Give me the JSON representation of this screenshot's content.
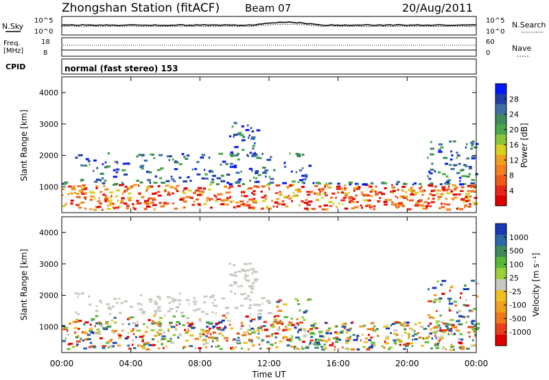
{
  "header": {
    "title": "Zhongshan Station (fitACF)",
    "beam": "Beam 07",
    "date": "20/Aug/2011"
  },
  "top_panels": {
    "nsky_label": "N.Sky",
    "nsky_tick_hi": "10^5",
    "nsky_tick_lo": "10^0",
    "nsearch_label": "N.Search",
    "nsearch_tick_hi": "10^5",
    "nsearch_tick_lo": "10^0",
    "freq_label_1": "Freq.",
    "freq_label_2": "[MHz]",
    "freq_tick_hi": "18",
    "freq_tick_lo": "8",
    "nave_label": "Nave",
    "nave_tick_hi": "60",
    "nave_tick_lo": "0",
    "cpid_label": "CPID",
    "cpid_text": "normal (fast stereo) 153"
  },
  "chart_data": [
    {
      "type": "heatmap",
      "name": "power",
      "ylabel": "Slant Range [km]",
      "yticks": [
        "1000",
        "2000",
        "3000",
        "4000"
      ],
      "ylim": [
        180,
        4500
      ],
      "colorbar_label": "Power [dB]",
      "colorbar_ticks": [
        "4",
        "8",
        "12",
        "16",
        "20",
        "24",
        "28"
      ],
      "colorbar_colors": [
        "#0018ff",
        "#1f3fa8",
        "#3d6ea8",
        "#3e8a5a",
        "#4aa84a",
        "#8ac63a",
        "#d8d020",
        "#f0a020",
        "#f08020",
        "#f05a18",
        "#e82818",
        "#e00000"
      ]
    },
    {
      "type": "heatmap",
      "name": "velocity",
      "ylabel": "Slant Range [km]",
      "yticks": [
        "1000",
        "2000",
        "3000",
        "4000"
      ],
      "ylim": [
        180,
        4500
      ],
      "colorbar_label": "Velocity [m s⁻¹]",
      "colorbar_ticks": [
        "1000",
        "500",
        "100",
        "25",
        "-25",
        "-100",
        "-500",
        "-1000"
      ],
      "colorbar_colors": [
        "#1838b8",
        "#2868a8",
        "#3e8a5a",
        "#58b838",
        "#9ad038",
        "#c8c8c0",
        "#f0c020",
        "#f0a020",
        "#f07818",
        "#e84018",
        "#e00000"
      ],
      "xlabel": "Time UT",
      "xticks": [
        "00:00",
        "04:00",
        "08:00",
        "12:00",
        "16:00",
        "20:00",
        "00:00"
      ]
    }
  ],
  "colors": {
    "axis": "#000000",
    "background": "#ffffff"
  }
}
